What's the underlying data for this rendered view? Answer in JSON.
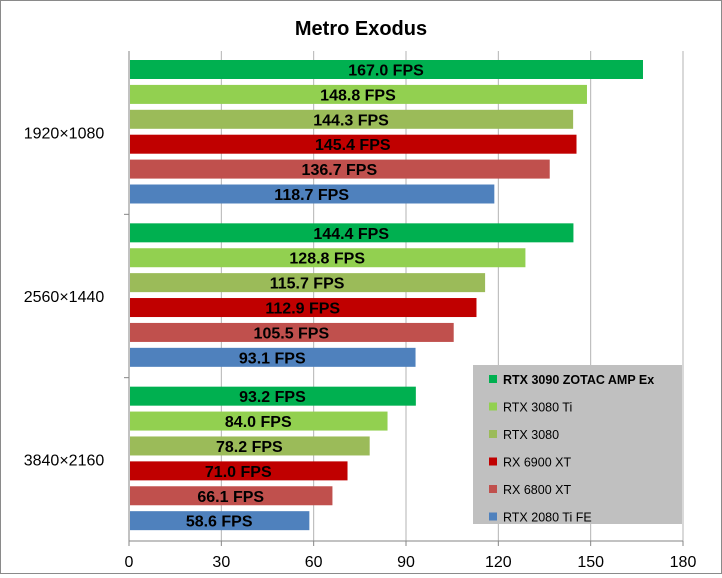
{
  "chart_data": {
    "type": "bar",
    "orientation": "horizontal",
    "title": "Metro Exodus",
    "xlabel": "",
    "ylabel": "",
    "xlim": [
      0,
      180
    ],
    "x_ticks": [
      0,
      30,
      60,
      90,
      120,
      150,
      180
    ],
    "grid": true,
    "legend_position": "bottom-right",
    "value_suffix": " FPS",
    "categories": [
      "1920×1080",
      "2560×1440",
      "3840×2160"
    ],
    "series": [
      {
        "name": "RTX 3090 ZOTAC AMP Ex",
        "color": "#00B050",
        "values": [
          167.0,
          144.4,
          93.2
        ],
        "labels": [
          "167.0 FPS",
          "144.4 FPS",
          "93.2 FPS"
        ]
      },
      {
        "name": "RTX 3080 Ti",
        "color": "#92D050",
        "values": [
          148.8,
          128.8,
          84.0
        ],
        "labels": [
          "148.8 FPS",
          "128.8 FPS",
          "84.0 FPS"
        ]
      },
      {
        "name": "RTX 3080",
        "color": "#9BBB59",
        "values": [
          144.3,
          115.7,
          78.2
        ],
        "labels": [
          "144.3 FPS",
          "115.7 FPS",
          "78.2 FPS"
        ]
      },
      {
        "name": "RX 6900 XT",
        "color": "#C00000",
        "values": [
          145.4,
          112.9,
          71.0
        ],
        "labels": [
          "145.4 FPS",
          "112.9 FPS",
          "71.0 FPS"
        ]
      },
      {
        "name": "RX 6800 XT",
        "color": "#C0504D",
        "values": [
          136.7,
          105.5,
          66.1
        ],
        "labels": [
          "136.7 FPS",
          "105.5 FPS",
          "66.1 FPS"
        ]
      },
      {
        "name": "RTX 2080 Ti FE",
        "color": "#4F81BD",
        "values": [
          118.7,
          93.1,
          58.6
        ],
        "labels": [
          "118.7 FPS",
          "93.1 FPS",
          "58.6 FPS"
        ]
      }
    ]
  }
}
